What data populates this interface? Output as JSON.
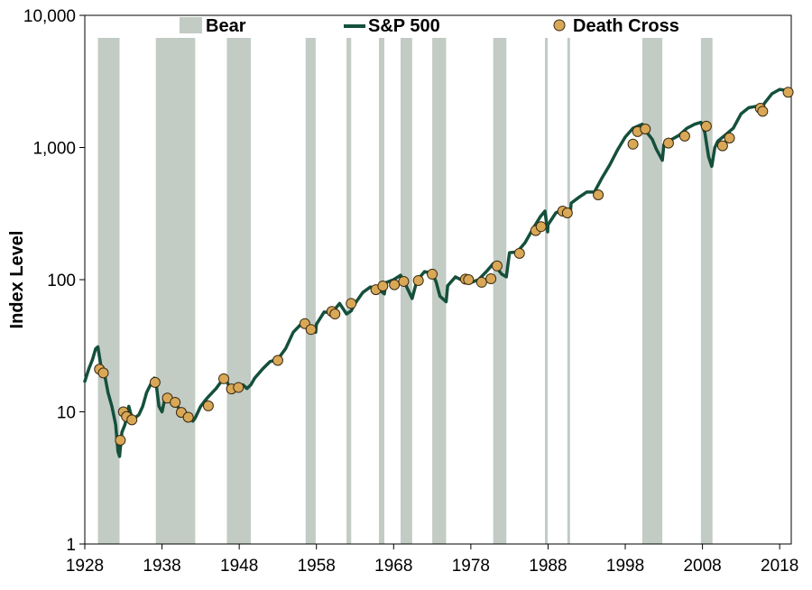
{
  "chart_data": {
    "type": "line",
    "title": "",
    "xlabel": "",
    "ylabel": "Index Level",
    "y_scale": "log",
    "ylim": [
      1,
      10000
    ],
    "xlim": [
      1928,
      2019.5
    ],
    "x_ticks": [
      1928,
      1938,
      1948,
      1958,
      1968,
      1978,
      1988,
      1998,
      2008,
      2018
    ],
    "x_tick_labels": [
      "1928",
      "1938",
      "1948",
      "1958",
      "1968",
      "1978",
      "1988",
      "1998",
      "2008",
      "2018"
    ],
    "y_ticks": [
      1,
      10,
      100,
      1000,
      10000
    ],
    "y_tick_labels": [
      "1",
      "10",
      "100",
      "1,000",
      "10,000"
    ],
    "grid": false,
    "legend_position": "top",
    "legend": {
      "bear": "Bear",
      "sp500": "S&P 500",
      "death_cross": "Death Cross"
    },
    "colors": {
      "bear": "#c2cbc4",
      "sp500": "#14503c",
      "death_cross_fill": "#d9a857",
      "death_cross_stroke": "#3a2a10"
    },
    "bear_markets": [
      [
        1929.7,
        1932.5
      ],
      [
        1937.2,
        1942.3
      ],
      [
        1946.4,
        1949.5
      ],
      [
        1956.6,
        1957.9
      ],
      [
        1961.9,
        1962.5
      ],
      [
        1966.1,
        1966.8
      ],
      [
        1968.9,
        1970.4
      ],
      [
        1973.0,
        1974.8
      ],
      [
        1980.9,
        1982.6
      ],
      [
        1987.6,
        1987.95
      ],
      [
        1990.5,
        1990.85
      ],
      [
        2000.2,
        2002.8
      ],
      [
        2007.8,
        2009.3
      ]
    ],
    "series": [
      {
        "name": "S&P 500",
        "x": [
          1928,
          1928.5,
          1929,
          1929.4,
          1929.7,
          1930.1,
          1930.5,
          1931,
          1931.5,
          1932,
          1932.3,
          1932.5,
          1932.8,
          1933.2,
          1933.7,
          1934,
          1934.5,
          1935,
          1935.5,
          1936,
          1936.5,
          1937,
          1937.2,
          1937.6,
          1938,
          1938.3,
          1938.7,
          1939,
          1939.5,
          1940,
          1940.5,
          1941,
          1941.5,
          1942,
          1942.3,
          1943,
          1943.5,
          1944,
          1945,
          1946,
          1946.4,
          1946.8,
          1947,
          1948,
          1948.5,
          1949,
          1949.5,
          1950,
          1951,
          1952,
          1953,
          1954,
          1955,
          1956,
          1956.5,
          1957,
          1957.9,
          1958,
          1959,
          1960,
          1961,
          1961.9,
          1962.5,
          1963,
          1964,
          1965,
          1966,
          1966.8,
          1967,
          1968,
          1968.9,
          1969.5,
          1970.4,
          1971,
          1972,
          1973,
          1973.5,
          1974,
          1974.8,
          1975,
          1976,
          1977,
          1978,
          1979,
          1980,
          1980.9,
          1981.5,
          1982,
          1982.6,
          1983,
          1984,
          1985,
          1986,
          1987,
          1987.6,
          1987.95,
          1988,
          1989,
          1990,
          1990.5,
          1990.85,
          1991,
          1992,
          1993,
          1994,
          1995,
          1996,
          1997,
          1998,
          1999,
          2000.2,
          2000.8,
          2001.5,
          2002,
          2002.8,
          2003,
          2004,
          2005,
          2006,
          2007,
          2007.8,
          2008.3,
          2008.8,
          2009.2,
          2009.6,
          2010,
          2011,
          2012,
          2013,
          2014,
          2015,
          2015.7,
          2016,
          2017,
          2018,
          2018.9,
          2019.3
        ],
        "y": [
          17,
          21,
          25,
          30,
          31,
          22,
          20,
          14,
          11,
          8,
          5,
          4.6,
          7,
          8,
          11,
          9.5,
          9,
          9.5,
          11,
          14,
          16,
          18,
          17,
          11,
          10,
          12,
          13,
          12,
          11.5,
          11,
          10,
          10,
          9,
          8.5,
          9,
          11,
          12,
          13,
          15,
          18,
          17,
          15,
          15,
          15.5,
          16,
          15,
          16,
          18,
          21,
          24,
          25,
          30,
          40,
          46,
          47,
          44,
          40,
          46,
          57,
          56,
          66,
          55,
          58,
          66,
          80,
          88,
          85,
          78,
          95,
          100,
          108,
          93,
          72,
          98,
          115,
          112,
          96,
          75,
          68,
          90,
          105,
          98,
          95,
          100,
          115,
          132,
          120,
          110,
          105,
          160,
          162,
          190,
          240,
          300,
          330,
          230,
          260,
          320,
          340,
          320,
          310,
          380,
          420,
          460,
          460,
          590,
          740,
          960,
          1200,
          1400,
          1500,
          1300,
          1150,
          980,
          800,
          1050,
          1150,
          1240,
          1400,
          1500,
          1550,
          1300,
          850,
          720,
          1000,
          1120,
          1250,
          1400,
          1800,
          2000,
          2050,
          1950,
          2150,
          2550,
          2750,
          2700,
          2750
        ]
      }
    ],
    "death_crosses": {
      "x": [
        1929.9,
        1930.4,
        1932.6,
        1933.0,
        1933.4,
        1934.1,
        1937.1,
        1938.7,
        1939.7,
        1940.5,
        1941.4,
        1944.0,
        1946.0,
        1947.0,
        1947.9,
        1953.0,
        1956.5,
        1957.3,
        1960.0,
        1960.4,
        1962.5,
        1965.7,
        1966.6,
        1968.1,
        1969.3,
        1971.2,
        1973.0,
        1977.3,
        1977.7,
        1979.4,
        1980.6,
        1981.4,
        1984.3,
        1986.4,
        1987.1,
        1989.9,
        1990.5,
        1994.5,
        1999.0,
        1999.6,
        2000.6,
        2003.6,
        2005.7,
        2008.5,
        2010.6,
        2011.5,
        2015.5,
        2015.8,
        2019.1
      ],
      "y": [
        21,
        19.7,
        6.1,
        10,
        9.2,
        8.7,
        16.7,
        12.7,
        11.8,
        9.9,
        9.1,
        11.1,
        17.8,
        14.9,
        15.3,
        24.5,
        46.5,
        42,
        57.5,
        55,
        66,
        84,
        89.5,
        91.5,
        97,
        98.5,
        110,
        101,
        100,
        95.5,
        101.5,
        127,
        158,
        235,
        252,
        330,
        320,
        438,
        1060,
        1320,
        1380,
        1080,
        1220,
        1450,
        1030,
        1180,
        1980,
        1880,
        2620
      ]
    }
  }
}
